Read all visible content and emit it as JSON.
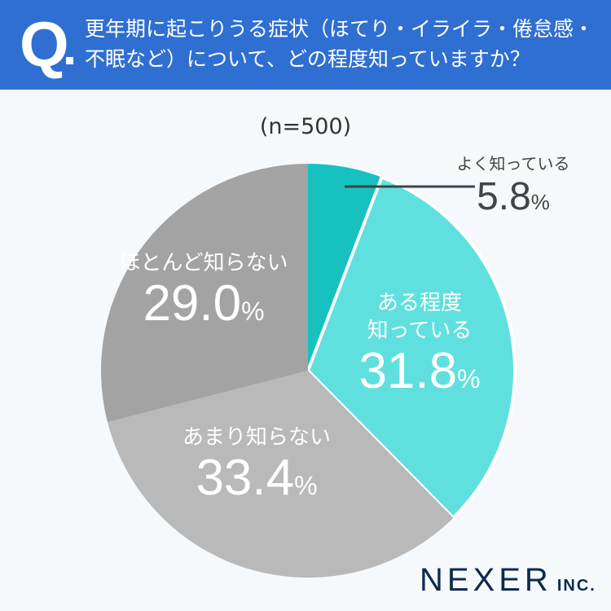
{
  "header": {
    "q_mark": "Q",
    "question": "更年期に起こりうる症状（ほてり・イライラ・倦怠感・不眠など）について、どの程度知っていますか？",
    "background": "#2f6fd1"
  },
  "sample_size": "(n=500)",
  "logo": {
    "name": "NEXER",
    "suffix": "INC."
  },
  "chart_data": {
    "type": "pie",
    "title": "更年期に起こりうる症状（ほてり・イライラ・倦怠感・不眠など）について、どの程度知っていますか？",
    "subtitle": "(n=500)",
    "start_angle": "12 o'clock, clockwise",
    "categories": [
      "よく知っている",
      "ある程度知っている",
      "あまり知らない",
      "ほとんど知らない"
    ],
    "values": [
      5.8,
      31.8,
      33.4,
      29.0
    ],
    "unit": "%",
    "colors": [
      "#17c1c0",
      "#5fe0de",
      "#b9b9b9",
      "#a3a3a3"
    ]
  },
  "labels": [
    {
      "text": "よく知っている",
      "value": "5.8",
      "pct": "%"
    },
    {
      "text": "ある程度\n知っている",
      "line1": "ある程度",
      "line2": "知っている",
      "value": "31.8",
      "pct": "%"
    },
    {
      "text": "あまり知らない",
      "value": "33.4",
      "pct": "%"
    },
    {
      "text": "ほとんど知らない",
      "value": "29.0",
      "pct": "%"
    }
  ]
}
